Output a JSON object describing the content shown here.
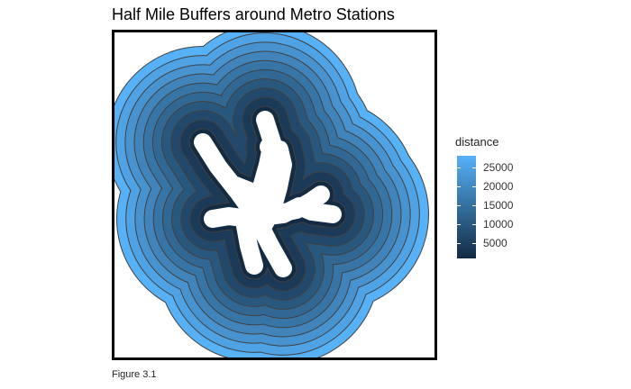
{
  "title": "Half Mile Buffers around Metro Stations",
  "caption": "Figure 3.1",
  "legend": {
    "title": "distance",
    "ticks": [
      "25000",
      "20000",
      "15000",
      "10000",
      "5000"
    ],
    "tick_values": [
      25000,
      20000,
      15000,
      10000,
      5000
    ],
    "range": [
      1000,
      28000
    ],
    "color_low": "#132b43",
    "color_high": "#56b1f7"
  },
  "map": {
    "band_values": [
      28000,
      25000,
      22000,
      19000,
      16000,
      13000,
      10000,
      7000,
      4000,
      1000
    ],
    "station_fill": "#ffffff",
    "band_stroke": "#404040",
    "frame_color": "#000000"
  }
}
